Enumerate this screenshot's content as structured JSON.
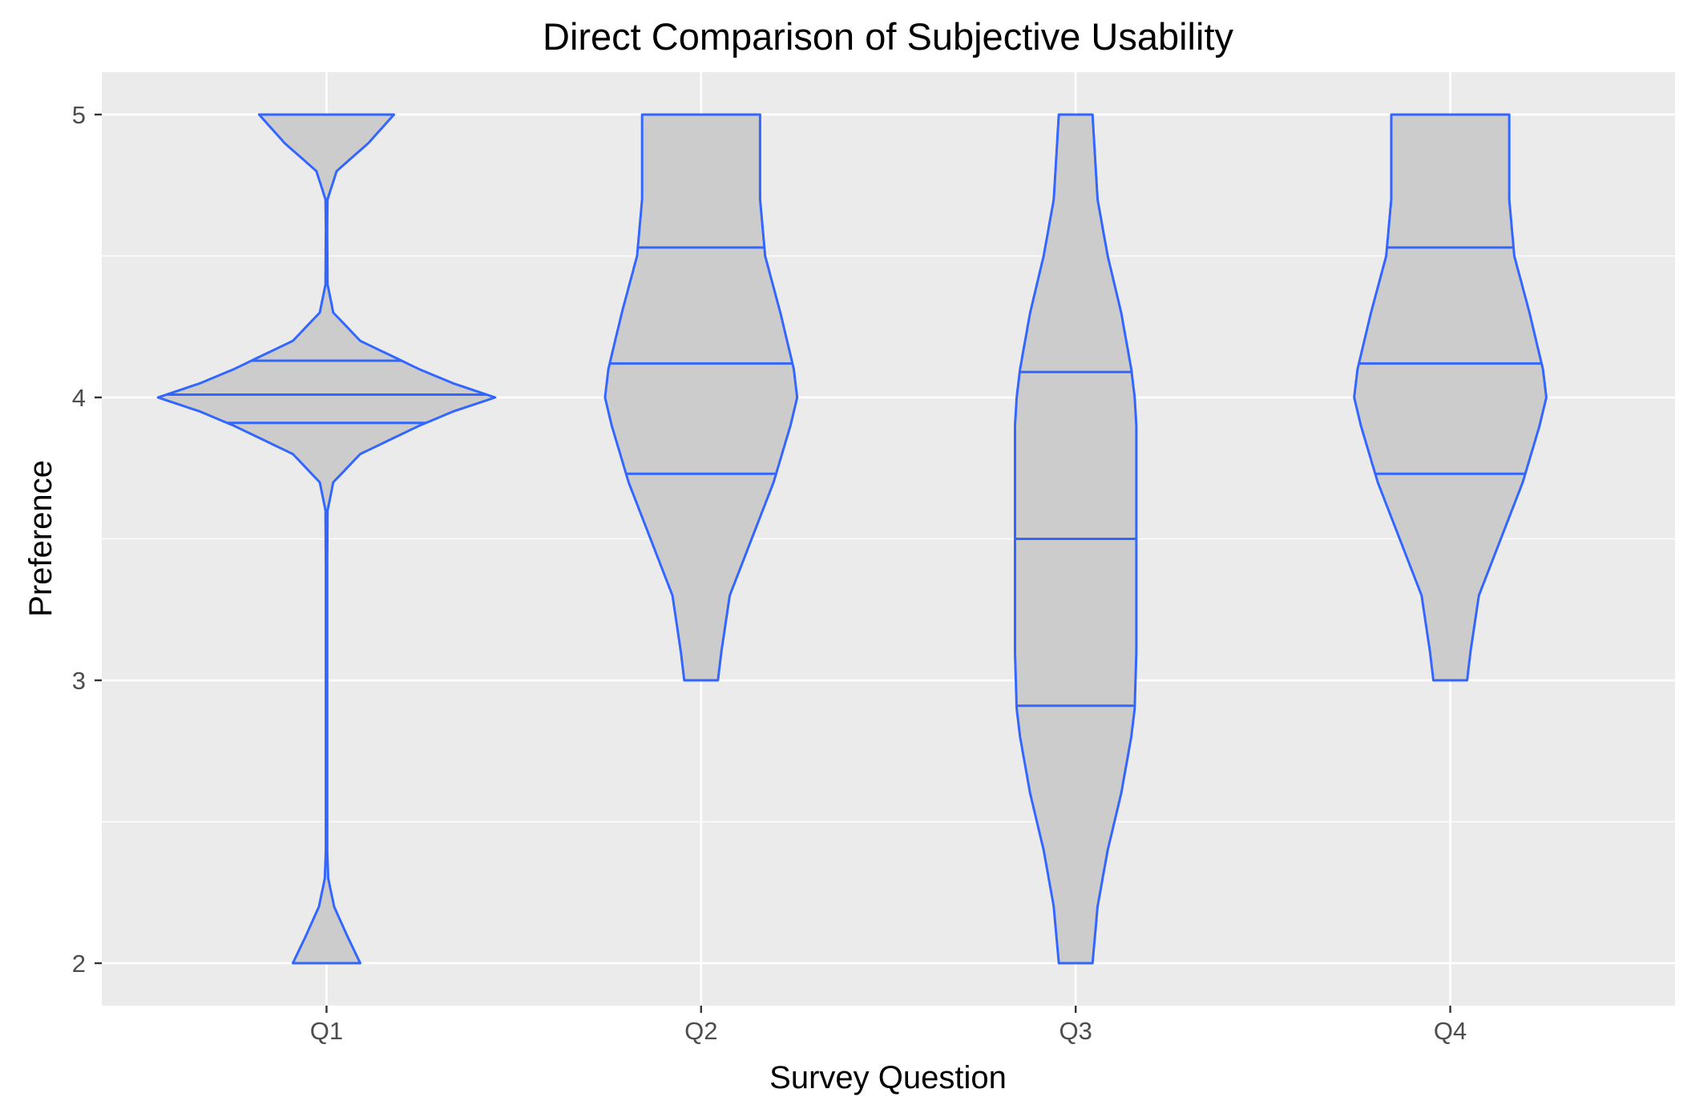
{
  "chart_data": {
    "type": "violin",
    "title": "Direct Comparison of Subjective Usability",
    "xlabel": "Survey Question",
    "ylabel": "Preference",
    "categories": [
      "Q1",
      "Q2",
      "Q3",
      "Q4"
    ],
    "ylim": [
      1.85,
      5.15
    ],
    "yticks": [
      2,
      3,
      4,
      5
    ],
    "grid": true,
    "colors": {
      "fill": "#cccccc",
      "outline": "#3366ff",
      "panel": "#ebebeb",
      "grid": "#ffffff"
    },
    "violins": [
      {
        "category": "Q1",
        "quantiles": [
          3.91,
          4.01,
          4.13
        ],
        "profile": [
          [
            2.0,
            0.2
          ],
          [
            2.1,
            0.12
          ],
          [
            2.2,
            0.045
          ],
          [
            2.3,
            0.01
          ],
          [
            2.4,
            0.004
          ],
          [
            2.6,
            0.004
          ],
          [
            3.0,
            0.004
          ],
          [
            3.4,
            0.004
          ],
          [
            3.6,
            0.006
          ],
          [
            3.7,
            0.04
          ],
          [
            3.8,
            0.2
          ],
          [
            3.9,
            0.55
          ],
          [
            3.95,
            0.75
          ],
          [
            4.0,
            1.0
          ],
          [
            4.05,
            0.75
          ],
          [
            4.1,
            0.55
          ],
          [
            4.2,
            0.2
          ],
          [
            4.3,
            0.04
          ],
          [
            4.4,
            0.006
          ],
          [
            4.6,
            0.004
          ],
          [
            4.7,
            0.006
          ],
          [
            4.8,
            0.06
          ],
          [
            4.9,
            0.25
          ],
          [
            5.0,
            0.4
          ]
        ]
      },
      {
        "category": "Q2",
        "quantiles": [
          3.73,
          4.12,
          4.53
        ],
        "profile": [
          [
            3.0,
            0.1
          ],
          [
            3.1,
            0.12
          ],
          [
            3.3,
            0.17
          ],
          [
            3.5,
            0.3
          ],
          [
            3.7,
            0.43
          ],
          [
            3.9,
            0.53
          ],
          [
            4.0,
            0.57
          ],
          [
            4.1,
            0.55
          ],
          [
            4.3,
            0.47
          ],
          [
            4.5,
            0.38
          ],
          [
            4.7,
            0.35
          ],
          [
            5.0,
            0.35
          ]
        ]
      },
      {
        "category": "Q3",
        "quantiles": [
          2.91,
          3.5,
          4.09
        ],
        "profile": [
          [
            2.0,
            0.1
          ],
          [
            2.2,
            0.13
          ],
          [
            2.4,
            0.19
          ],
          [
            2.6,
            0.27
          ],
          [
            2.8,
            0.33
          ],
          [
            2.9,
            0.35
          ],
          [
            3.1,
            0.36
          ],
          [
            3.3,
            0.36
          ],
          [
            3.5,
            0.36
          ],
          [
            3.7,
            0.36
          ],
          [
            3.9,
            0.36
          ],
          [
            4.0,
            0.35
          ],
          [
            4.1,
            0.33
          ],
          [
            4.3,
            0.27
          ],
          [
            4.5,
            0.19
          ],
          [
            4.7,
            0.13
          ],
          [
            5.0,
            0.1
          ]
        ]
      },
      {
        "category": "Q4",
        "quantiles": [
          3.73,
          4.12,
          4.53
        ],
        "profile": [
          [
            3.0,
            0.1
          ],
          [
            3.1,
            0.12
          ],
          [
            3.3,
            0.17
          ],
          [
            3.5,
            0.3
          ],
          [
            3.7,
            0.43
          ],
          [
            3.9,
            0.53
          ],
          [
            4.0,
            0.57
          ],
          [
            4.1,
            0.55
          ],
          [
            4.3,
            0.47
          ],
          [
            4.5,
            0.38
          ],
          [
            4.7,
            0.35
          ],
          [
            5.0,
            0.35
          ]
        ]
      }
    ]
  }
}
